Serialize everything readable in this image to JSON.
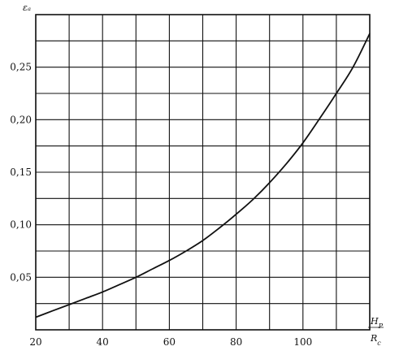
{
  "chart_data": {
    "type": "line",
    "ylabel": "εₐ",
    "xlabel_top": "H",
    "xlabel_top_sub": "P",
    "xlabel_bottom": "R",
    "xlabel_bottom_sub": "c",
    "xlim": [
      20,
      120
    ],
    "ylim": [
      0,
      0.3
    ],
    "grid": true,
    "x_ticks": [
      20,
      40,
      60,
      80,
      100
    ],
    "x_tick_labels": [
      "20",
      "40",
      "60",
      "80",
      "100"
    ],
    "y_ticks": [
      0.05,
      0.1,
      0.15,
      0.2,
      0.25
    ],
    "y_tick_labels": [
      "0,05",
      "0,10",
      "0,15",
      "0,20",
      "0,25"
    ],
    "x_grid": [
      20,
      30,
      40,
      50,
      60,
      70,
      80,
      90,
      100,
      110,
      120
    ],
    "y_grid": [
      0,
      0.025,
      0.05,
      0.075,
      0.1,
      0.125,
      0.15,
      0.175,
      0.2,
      0.225,
      0.25,
      0.275,
      0.3
    ],
    "series": [
      {
        "x": [
          20,
          25,
          30,
          35,
          40,
          45,
          50,
          55,
          60,
          65,
          70,
          75,
          80,
          85,
          90,
          95,
          100,
          105,
          110,
          115,
          120
        ],
        "values": [
          0.012,
          0.018,
          0.024,
          0.03,
          0.036,
          0.043,
          0.05,
          0.058,
          0.066,
          0.075,
          0.085,
          0.097,
          0.11,
          0.124,
          0.14,
          0.158,
          0.178,
          0.201,
          0.225,
          0.25,
          0.282
        ]
      }
    ]
  }
}
